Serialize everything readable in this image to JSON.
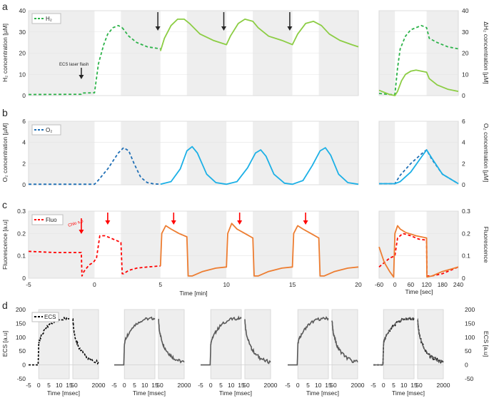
{
  "figure": {
    "panel_labels": [
      "a",
      "b",
      "c",
      "d"
    ],
    "colors": {
      "green_dark": "#2db34a",
      "green_light": "#8ccd44",
      "blue_dark": "#1f6fb5",
      "blue_light": "#1cb0e6",
      "red": "#ff0000",
      "orange": "#ed7d31",
      "black": "#000000",
      "gray": "#595959",
      "shade": "#eeeeee"
    }
  },
  "chart_data": [
    {
      "id": "a",
      "type": "line",
      "ylabel": "H₂ concentration [µM]",
      "ylabel_right": "ΔH₂ concentration [µM]",
      "xlim": [
        -5,
        20
      ],
      "ylim": [
        0,
        40
      ],
      "yticks": [
        "0",
        "10",
        "20",
        "30",
        "40"
      ],
      "yticks_right": [
        "0",
        "10",
        "20",
        "30",
        "40"
      ],
      "legend": "H₂",
      "annotation": "ECS laser flash",
      "arrow_x": [
        -1,
        4.8,
        9.8,
        14.8
      ],
      "series": [
        {
          "name": "H₂",
          "style": "dashed",
          "color": "green_dark",
          "x": [
            -5,
            -1,
            -0.9,
            0,
            0.3,
            0.7,
            1.0,
            1.4,
            1.8,
            2.1
          ],
          "y": [
            0.5,
            0.6,
            1.2,
            1.3,
            15,
            24,
            29,
            32,
            33,
            32
          ]
        },
        {
          "style": "dashed",
          "color": "green_dark",
          "x": [
            2.1,
            2.6,
            3.2,
            4.0,
            5.0
          ],
          "y": [
            32,
            28,
            25,
            23,
            22
          ]
        },
        {
          "style": "solid",
          "color": "green_light",
          "x": [
            5.0,
            5.3,
            5.8,
            6.3,
            6.8,
            7.2,
            8.0,
            9.0,
            10.0,
            10.3,
            10.9,
            11.4,
            12.0,
            12.4,
            13.2,
            14.2,
            15.0,
            15.4,
            16.0,
            16.6,
            17.2,
            17.8,
            18.6,
            19.5,
            20.0
          ],
          "y": [
            21,
            27,
            33,
            36,
            36,
            34,
            29,
            26,
            24,
            28,
            34,
            36,
            35,
            32,
            28,
            26,
            24,
            29,
            34,
            35,
            33,
            29,
            26,
            24,
            23
          ]
        }
      ],
      "inset": {
        "xlim": [
          -60,
          240
        ],
        "series": [
          {
            "style": "dashed",
            "color": "green_dark",
            "x": [
              -60,
              -20,
              0,
              10,
              20,
              40,
              60,
              80,
              100,
              120,
              130,
              160,
              200,
              240
            ],
            "y": [
              1.0,
              0.5,
              0.5,
              13,
              22,
              28,
              31,
              32,
              33,
              32,
              27,
              25,
              23,
              22
            ]
          },
          {
            "style": "solid",
            "color": "green_light",
            "x": [
              -60,
              -20,
              0,
              10,
              25,
              40,
              60,
              80,
              100,
              120,
              130,
              160,
              200,
              240
            ],
            "y": [
              2.5,
              0.5,
              0,
              2,
              7,
              10,
              11.5,
              12,
              11.5,
              11,
              8,
              5,
              3,
              2
            ]
          }
        ]
      }
    },
    {
      "id": "b",
      "type": "line",
      "ylabel": "O₂ concentration [µM]",
      "ylabel_right": "O₂ concentration [µM]",
      "xlim": [
        -5,
        20
      ],
      "ylim": [
        0,
        6
      ],
      "yticks": [
        "0",
        "2",
        "4",
        "6"
      ],
      "yticks_right": [
        "0",
        "2",
        "4",
        "6"
      ],
      "legend": "O₂",
      "series": [
        {
          "name": "O₂",
          "style": "dashed",
          "color": "blue_dark",
          "x": [
            -5,
            0,
            0.2,
            1.0,
            1.8,
            2.2,
            2.6,
            3.0,
            3.5,
            4.0,
            4.5,
            5.0
          ],
          "y": [
            0.05,
            0.05,
            0.3,
            1.5,
            3.0,
            3.5,
            3.2,
            2.0,
            0.7,
            0.2,
            0.08,
            0.05
          ]
        },
        {
          "style": "solid",
          "color": "blue_light",
          "x": [
            5.0,
            5.8,
            6.5,
            7.0,
            7.4,
            7.8,
            8.5,
            9.2,
            10.0,
            10.8,
            11.6,
            12.2,
            12.6,
            13.0,
            13.6,
            14.4,
            15.0,
            15.8,
            16.5,
            17.1,
            17.5,
            17.9,
            18.5,
            19.2,
            20.0
          ],
          "y": [
            0.05,
            0.3,
            1.5,
            3.2,
            3.6,
            3.0,
            1.0,
            0.2,
            0.05,
            0.3,
            1.6,
            3.0,
            3.3,
            2.7,
            1.0,
            0.15,
            0.05,
            0.4,
            1.8,
            3.2,
            3.5,
            2.8,
            1.0,
            0.2,
            0.05
          ]
        }
      ],
      "inset": {
        "xlim": [
          -60,
          240
        ],
        "series": [
          {
            "style": "dashed",
            "color": "blue_dark",
            "x": [
              -60,
              0,
              20,
              60,
              100,
              120,
              140,
              180,
              240
            ],
            "y": [
              0.1,
              0.1,
              0.9,
              2.0,
              2.9,
              3.3,
              2.4,
              1.0,
              0.1
            ]
          },
          {
            "style": "solid",
            "color": "blue_light",
            "x": [
              -60,
              0,
              20,
              60,
              100,
              120,
              140,
              180,
              240
            ],
            "y": [
              0.1,
              0.1,
              0.3,
              1.2,
              2.6,
              3.3,
              2.5,
              1.0,
              0.1
            ]
          }
        ]
      }
    },
    {
      "id": "c",
      "type": "line",
      "ylabel": "Fluorescence [a.u]",
      "ylabel_right": "Fluorescence",
      "xlabel": "Time [min]",
      "xlim": [
        -5,
        20
      ],
      "ylim": [
        0,
        0.3
      ],
      "xticks": [
        "-5",
        "0",
        "5",
        "10",
        "15",
        "20"
      ],
      "yticks": [
        "0",
        "0.1",
        "0.2",
        "0.3"
      ],
      "yticks_right": [
        "0",
        "0.1",
        "0.2",
        "0.3"
      ],
      "legend": "Fluo",
      "annotation": "Chlo s.p",
      "arrow_x": [
        -1,
        1,
        6,
        11,
        16
      ],
      "series": [
        {
          "name": "Fluo",
          "style": "dashed",
          "color": "red",
          "x": [
            -5,
            -3,
            -1,
            -0.95,
            -0.8,
            -0.4,
            -0.1,
            0.15,
            0.4,
            0.8,
            1.2,
            1.6,
            2.0,
            2.1,
            2.2,
            2.6,
            3.2,
            4.0,
            5.0
          ],
          "y": [
            0.12,
            0.115,
            0.115,
            0.01,
            0.03,
            0.06,
            0.07,
            0.09,
            0.19,
            0.19,
            0.18,
            0.17,
            0.16,
            0.02,
            0.02,
            0.035,
            0.045,
            0.05,
            0.055
          ]
        },
        {
          "style": "solid",
          "color": "orange",
          "x": [
            5.0,
            5.1,
            5.4,
            5.8,
            6.4,
            7.0,
            7.1,
            7.4,
            8.2,
            9.2,
            10.0,
            10.1,
            10.4,
            10.8,
            11.4,
            12.0,
            12.1,
            12.4,
            13.2,
            14.2,
            15.0,
            15.1,
            15.4,
            15.8,
            16.4,
            17.0,
            17.1,
            17.4,
            18.2,
            19.2,
            20.0
          ],
          "y": [
            0.055,
            0.2,
            0.235,
            0.22,
            0.2,
            0.185,
            0.01,
            0.01,
            0.03,
            0.045,
            0.05,
            0.2,
            0.245,
            0.22,
            0.2,
            0.18,
            0.01,
            0.01,
            0.03,
            0.045,
            0.05,
            0.2,
            0.235,
            0.22,
            0.2,
            0.18,
            0.01,
            0.01,
            0.03,
            0.045,
            0.05
          ]
        }
      ],
      "inset": {
        "xlabel": "Time [sec]",
        "xlim": [
          -60,
          240
        ],
        "xticks": [
          "-60",
          "0",
          "60",
          "120",
          "180",
          "240"
        ],
        "series": [
          {
            "style": "dashed",
            "color": "red",
            "x": [
              -60,
              -40,
              -20,
              0,
              10,
              30,
              60,
              90,
              120,
              121,
              140,
              180,
              240
            ],
            "y": [
              0.05,
              0.07,
              0.09,
              0.1,
              0.18,
              0.2,
              0.19,
              0.175,
              0.17,
              0.01,
              0.01,
              0.02,
              0.05
            ]
          },
          {
            "style": "solid",
            "color": "orange",
            "x": [
              -60,
              -40,
              -20,
              -5,
              0,
              10,
              20,
              40,
              80,
              120,
              121,
              140,
              180,
              240
            ],
            "y": [
              0.14,
              0.07,
              0.03,
              0.005,
              0.2,
              0.235,
              0.22,
              0.205,
              0.19,
              0.18,
              0.005,
              0.01,
              0.03,
              0.05
            ]
          }
        ]
      }
    },
    {
      "id": "d",
      "type": "line",
      "ylabel": "ECS [a.u]",
      "ylabel_right": "ECS [a.u]",
      "xlabel": "Time [msec]",
      "ylim": [
        -50,
        200
      ],
      "yticks": [
        "-50",
        "0",
        "50",
        "100",
        "150",
        "200"
      ],
      "yticks_right": [
        "-50",
        "0",
        "50",
        "100",
        "150",
        "200"
      ],
      "legend": "ECS",
      "xticks_left": [
        "-5",
        "0",
        "5",
        "10",
        "15"
      ],
      "xticks_right": [
        "50",
        "2000"
      ],
      "rise_x": [
        -5,
        -0.3,
        0,
        0.3,
        1.0,
        2.5,
        4.5,
        7.0,
        10.0,
        13.0,
        15.0
      ],
      "rise_y": [
        0,
        0,
        75,
        88,
        100,
        120,
        140,
        155,
        165,
        168,
        168
      ],
      "decay_x": [
        50,
        100,
        200,
        400,
        600,
        900,
        1200,
        1600,
        2000
      ],
      "decay_y": [
        165,
        135,
        105,
        75,
        55,
        38,
        25,
        15,
        10
      ],
      "panels": [
        {
          "style": "dashed",
          "color": "black"
        },
        {
          "style": "solid",
          "color": "gray"
        },
        {
          "style": "solid",
          "color": "gray"
        },
        {
          "style": "solid",
          "color": "gray"
        },
        {
          "style": "overlay",
          "color": "black"
        }
      ]
    }
  ]
}
